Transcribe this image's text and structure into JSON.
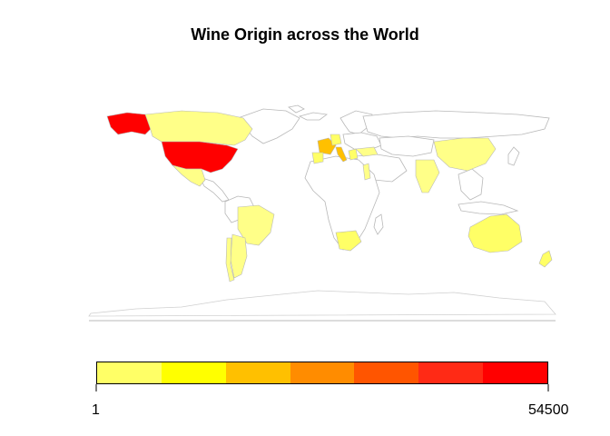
{
  "title": "Wine Origin across the World",
  "legend": {
    "min_label": "1",
    "max_label": "54500",
    "colors": [
      "#FFFF66",
      "#FFFF00",
      "#FFC000",
      "#FF8C00",
      "#FF5500",
      "#FF2A15",
      "#FF0000"
    ]
  },
  "map": {
    "border_color": "#B0B0B0",
    "unknown_fill": "#FFFFFF",
    "highlighted": [
      {
        "country": "United States",
        "level": "high",
        "fill": "#FF0000"
      },
      {
        "country": "Canada",
        "level": "low",
        "fill": "#FFFF88"
      },
      {
        "country": "Mexico",
        "level": "low",
        "fill": "#FFFF88"
      },
      {
        "country": "Brazil",
        "level": "low",
        "fill": "#FFFF88"
      },
      {
        "country": "Argentina",
        "level": "low",
        "fill": "#FFFF88"
      },
      {
        "country": "Chile",
        "level": "low",
        "fill": "#FFFF88"
      },
      {
        "country": "Uruguay",
        "level": "low",
        "fill": "#FFFF88"
      },
      {
        "country": "France",
        "level": "mid",
        "fill": "#FFC000"
      },
      {
        "country": "Italy",
        "level": "mid",
        "fill": "#FFC000"
      },
      {
        "country": "Spain",
        "level": "low",
        "fill": "#FFFF66"
      },
      {
        "country": "Portugal",
        "level": "low",
        "fill": "#FFFF66"
      },
      {
        "country": "Germany",
        "level": "low",
        "fill": "#FFFF66"
      },
      {
        "country": "Austria",
        "level": "low",
        "fill": "#FFFF66"
      },
      {
        "country": "Greece",
        "level": "low",
        "fill": "#FFFF66"
      },
      {
        "country": "Turkey",
        "level": "low",
        "fill": "#FFFF88"
      },
      {
        "country": "Israel",
        "level": "low",
        "fill": "#FFFF88"
      },
      {
        "country": "China",
        "level": "low",
        "fill": "#FFFF88"
      },
      {
        "country": "India",
        "level": "low",
        "fill": "#FFFF88"
      },
      {
        "country": "South Africa",
        "level": "low",
        "fill": "#FFFF66"
      },
      {
        "country": "Australia",
        "level": "low",
        "fill": "#FFFF66"
      },
      {
        "country": "New Zealand",
        "level": "low",
        "fill": "#FFFF66"
      }
    ]
  }
}
